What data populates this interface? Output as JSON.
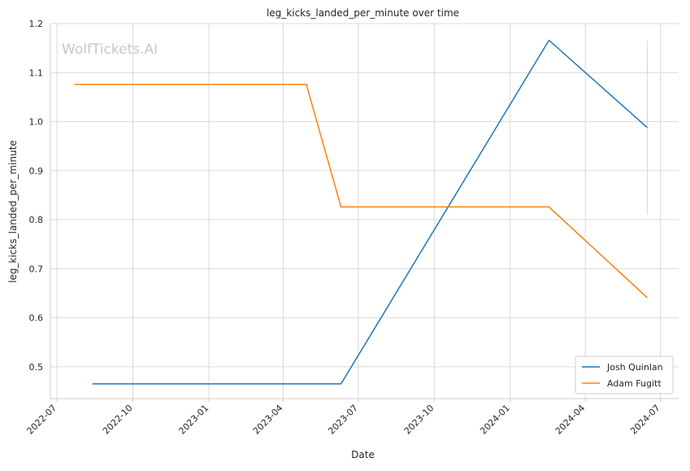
{
  "chart_data": {
    "type": "line",
    "title": "leg_kicks_landed_per_minute over time",
    "xlabel": "Date",
    "ylabel": "leg_kicks_landed_per_minute",
    "watermark": "WolfTickets.AI",
    "x_type": "date",
    "xlim": [
      "2022-06-23",
      "2024-07-23"
    ],
    "ylim": [
      0.435,
      1.2
    ],
    "x_ticks": [
      {
        "date": "2022-07-01",
        "label": "2022-07"
      },
      {
        "date": "2022-10-01",
        "label": "2022-10"
      },
      {
        "date": "2023-01-01",
        "label": "2023-01"
      },
      {
        "date": "2023-04-01",
        "label": "2023-04"
      },
      {
        "date": "2023-07-01",
        "label": "2023-07"
      },
      {
        "date": "2023-10-01",
        "label": "2023-10"
      },
      {
        "date": "2024-01-01",
        "label": "2024-01"
      },
      {
        "date": "2024-04-01",
        "label": "2024-04"
      },
      {
        "date": "2024-07-01",
        "label": "2024-07"
      }
    ],
    "y_ticks": [
      0.5,
      0.6,
      0.7,
      0.8,
      0.9,
      1.0,
      1.1,
      1.2
    ],
    "y_tick_labels": [
      "0.5",
      "0.6",
      "0.7",
      "0.8",
      "0.9",
      "1.0",
      "1.1",
      "1.2"
    ],
    "grid": true,
    "legend_position": "bottom-right",
    "series": [
      {
        "name": "Josh Quinlan",
        "color": "#1f77b4",
        "points": [
          {
            "x": "2022-08-13",
            "y": 0.465
          },
          {
            "x": "2023-06-10",
            "y": 0.465
          },
          {
            "x": "2024-02-17",
            "y": 1.166
          },
          {
            "x": "2024-06-15",
            "y": 0.988
          }
        ]
      },
      {
        "name": "Adam Fugitt",
        "color": "#ff7f0e",
        "points": [
          {
            "x": "2022-07-22",
            "y": 1.076
          },
          {
            "x": "2023-04-29",
            "y": 1.076
          },
          {
            "x": "2023-06-10",
            "y": 0.826
          },
          {
            "x": "2024-02-17",
            "y": 0.826
          },
          {
            "x": "2024-06-15",
            "y": 0.641
          }
        ]
      }
    ],
    "annotations": [
      {
        "type": "vertical-line",
        "x": "2024-06-15",
        "y_range": [
          0.81,
          1.165
        ],
        "color": "#bfe3cc"
      }
    ]
  }
}
